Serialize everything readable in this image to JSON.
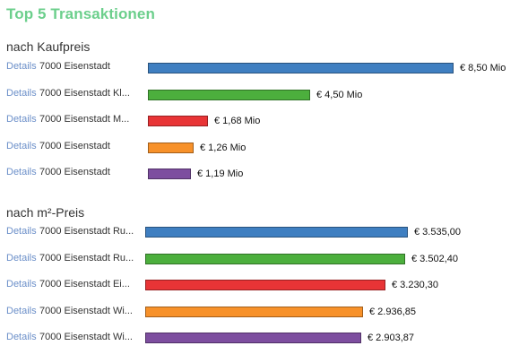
{
  "title": "Top 5 Transaktionen",
  "details_label": "Details",
  "colors": [
    "#3f7fc1",
    "#4caf3d",
    "#e83436",
    "#f7912a",
    "#7d4e9f"
  ],
  "sections": [
    {
      "heading": "nach Kaufpreis",
      "max_value": 8.5,
      "rows": [
        {
          "label": "7000 Eisenstadt",
          "value": 8.5,
          "value_text": "€ 8,50 Mio"
        },
        {
          "label": "7000 Eisenstadt Kl...",
          "value": 4.5,
          "value_text": "€ 4,50 Mio"
        },
        {
          "label": "7000 Eisenstadt M...",
          "value": 1.68,
          "value_text": "€ 1,68 Mio"
        },
        {
          "label": "7000 Eisenstadt",
          "value": 1.26,
          "value_text": "€ 1,26 Mio"
        },
        {
          "label": "7000 Eisenstadt",
          "value": 1.19,
          "value_text": "€ 1,19 Mio"
        }
      ]
    },
    {
      "heading": "nach m²-Preis",
      "max_value": 3535.0,
      "rows": [
        {
          "label": "7000 Eisenstadt Ru...",
          "value": 3535.0,
          "value_text": "€ 3.535,00"
        },
        {
          "label": "7000 Eisenstadt Ru...",
          "value": 3502.4,
          "value_text": "€ 3.502,40"
        },
        {
          "label": "7000 Eisenstadt Ei...",
          "value": 3230.3,
          "value_text": "€ 3.230,30"
        },
        {
          "label": "7000 Eisenstadt Wi...",
          "value": 2936.85,
          "value_text": "€ 2.936,85"
        },
        {
          "label": "7000 Eisenstadt Wi...",
          "value": 2903.87,
          "value_text": "€ 2.903,87"
        }
      ]
    }
  ]
}
